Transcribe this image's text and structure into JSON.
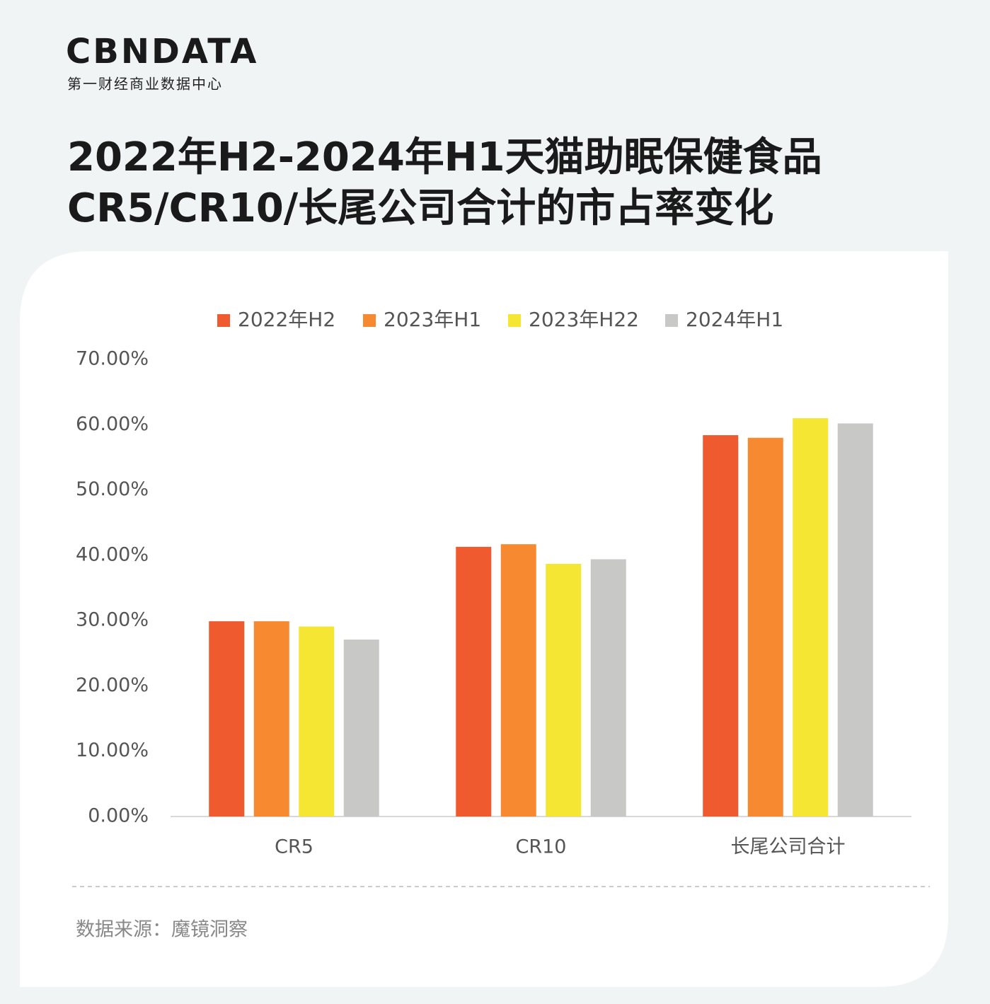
{
  "header": {
    "logo": "CBNDATA",
    "logo_subtitle": "第一财经商业数据中心"
  },
  "chart_data": {
    "type": "bar",
    "title": [
      "2022年H2-2024年H1天猫助眠保健食品",
      "CR5/CR10/长尾公司合计的市占率变化"
    ],
    "categories": [
      "CR5",
      "CR10",
      "长尾公司合计"
    ],
    "series": [
      {
        "name": "2022年H2",
        "color": "#f05a2f",
        "values": [
          29.9,
          41.3,
          58.4
        ]
      },
      {
        "name": "2023年H1",
        "color": "#f78a30",
        "values": [
          29.9,
          41.7,
          58.0
        ]
      },
      {
        "name": "2023年H22",
        "color": "#f5e633",
        "values": [
          29.1,
          38.7,
          61.0
        ]
      },
      {
        "name": "2024年H1",
        "color": "#c8c9c6",
        "values": [
          27.1,
          39.4,
          60.2
        ]
      }
    ],
    "ylim": [
      0,
      70
    ],
    "yticks": [
      {
        "value": 0,
        "label": "0.00%"
      },
      {
        "value": 10,
        "label": "10.00%"
      },
      {
        "value": 20,
        "label": "20.00%"
      },
      {
        "value": 30,
        "label": "30.00%"
      },
      {
        "value": 40,
        "label": "40.00%"
      },
      {
        "value": 50,
        "label": "50.00%"
      },
      {
        "value": 60,
        "label": "60.00%"
      },
      {
        "value": 70,
        "label": "70.00%"
      }
    ],
    "grid": false,
    "legend": "top",
    "source": "数据来源：魔镜洞察"
  }
}
